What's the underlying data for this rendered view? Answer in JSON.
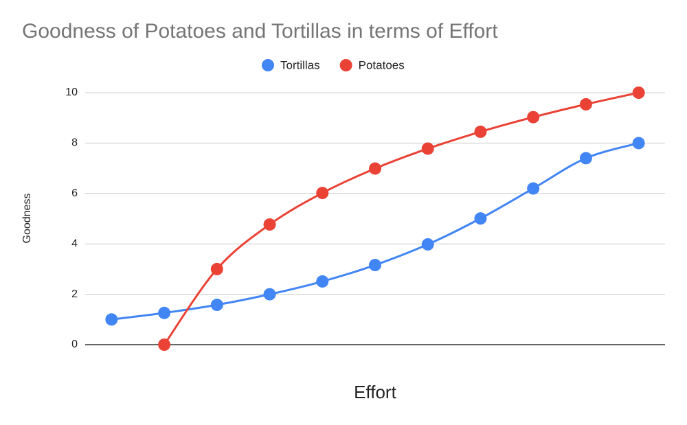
{
  "chart_data": {
    "type": "line",
    "title": "Goodness of Potatoes and Tortillas in terms of Effort",
    "x_label": "Effort",
    "y_label": "Goodness",
    "categories": [
      null,
      null,
      null,
      null,
      null,
      null,
      null,
      null,
      null,
      null,
      null
    ],
    "series": [
      {
        "name": "Tortillas",
        "color": "#4285f4",
        "values": [
          1,
          1.26,
          1.58,
          2,
          2.51,
          3.16,
          3.98,
          5.01,
          6.2,
          7.4,
          8
        ]
      },
      {
        "name": "Potatoes",
        "color": "#ea4335",
        "values": [
          null,
          0,
          3,
          4.77,
          6.02,
          6.99,
          7.78,
          8.45,
          9.03,
          9.54,
          10
        ]
      }
    ],
    "ylim": [
      0,
      10
    ],
    "yticks": [
      0,
      2,
      4,
      6,
      8,
      10
    ],
    "grid": true,
    "legend": "top",
    "smooth": true
  }
}
